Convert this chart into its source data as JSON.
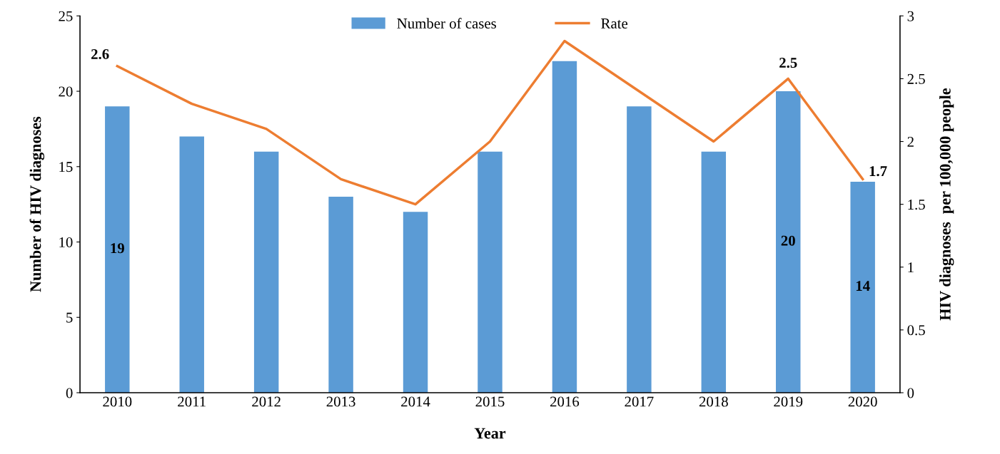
{
  "chart_data": {
    "type": "bar",
    "xlabel": "Year",
    "ylabel": "Number of HIV diagnoses",
    "y2label": "HIV diagnoses  per 100,000 people",
    "categories": [
      "2010",
      "2011",
      "2012",
      "2013",
      "2014",
      "2015",
      "2016",
      "2017",
      "2018",
      "2019",
      "2020"
    ],
    "series": [
      {
        "name": "Number of cases",
        "color": "#5b9bd5",
        "values": [
          19,
          17,
          16,
          13,
          12,
          16,
          22,
          19,
          16,
          20,
          14
        ],
        "value_labels": [
          "19",
          null,
          null,
          null,
          null,
          null,
          null,
          null,
          null,
          "20",
          "14"
        ]
      },
      {
        "name": "Rate",
        "type": "line",
        "axis": "y2",
        "color": "#ed7d31",
        "values": [
          2.6,
          2.3,
          2.1,
          1.7,
          1.5,
          2.0,
          2.8,
          2.4,
          2.0,
          2.5,
          1.7
        ],
        "value_labels": [
          "2.6",
          null,
          null,
          null,
          null,
          null,
          null,
          null,
          null,
          "2.5",
          "1.7"
        ]
      }
    ],
    "ylim": [
      0,
      25
    ],
    "yticks": [
      0,
      5,
      10,
      15,
      20,
      25
    ],
    "y2lim": [
      0,
      3
    ],
    "y2ticks": [
      0,
      0.5,
      1,
      1.5,
      2,
      2.5,
      3
    ],
    "legend": "top",
    "grid": false,
    "marker": "none",
    "line_style": "solid"
  }
}
